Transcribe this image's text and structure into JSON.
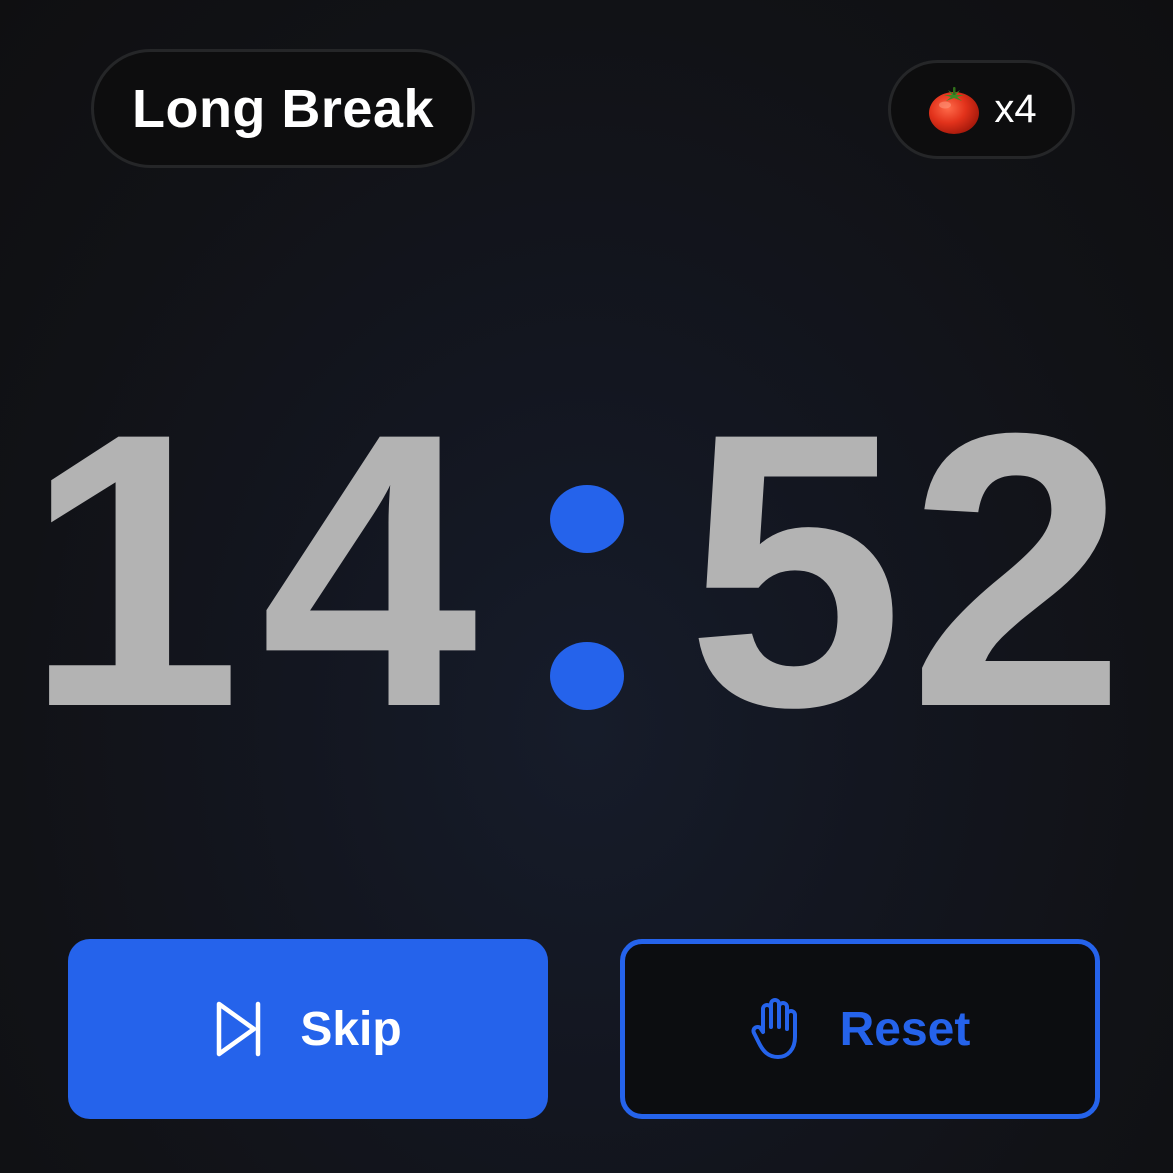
{
  "session": {
    "mode_label": "Long Break"
  },
  "pomodoro_count": {
    "icon": "tomato-icon",
    "label": "x4"
  },
  "timer": {
    "minutes": "14",
    "seconds": "52",
    "digit_color": "#b3b3b3",
    "separator_color": "#2563eb"
  },
  "actions": {
    "skip": {
      "label": "Skip",
      "icon": "skip-forward-icon"
    },
    "reset": {
      "label": "Reset",
      "icon": "hand-stop-icon"
    }
  },
  "colors": {
    "accent": "#2563eb",
    "background": "#111216"
  }
}
